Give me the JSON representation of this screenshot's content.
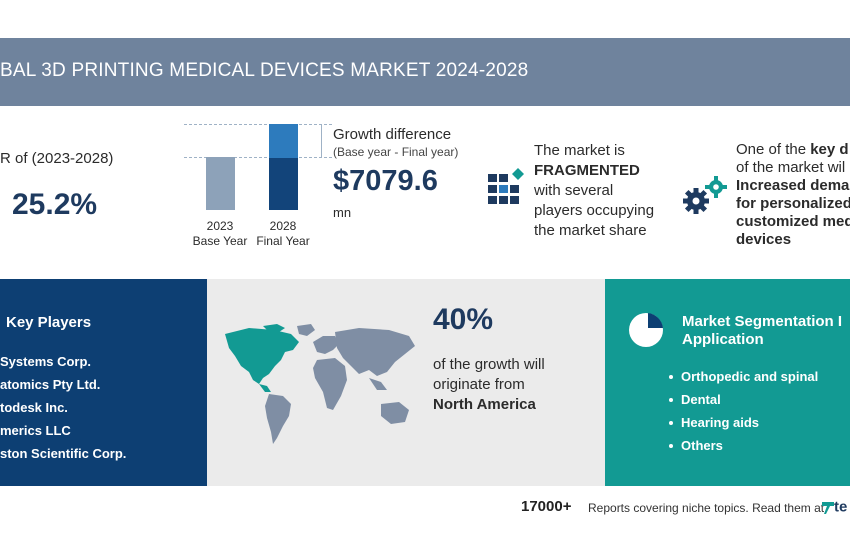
{
  "header": {
    "title": "BAL 3D PRINTING MEDICAL DEVICES MARKET 2024-2028"
  },
  "cagr": {
    "label": "R of (2023-2028)",
    "value": "25.2%"
  },
  "growth_chart": {
    "base_label_year": "2023",
    "base_label_name": "Base Year",
    "final_label_year": "2028",
    "final_label_name": "Final Year"
  },
  "growth": {
    "title": "Growth difference",
    "subtitle": "(Base year - Final year)",
    "value": "$7079.6",
    "unit": "mn"
  },
  "market": {
    "line1": "The market is",
    "line2": "FRAGMENTED",
    "line3": "with several",
    "line4": "players occupying",
    "line5": "the market share"
  },
  "driver": {
    "line1_pre": "One of the ",
    "line1_bold": "key d",
    "line2": "of the market wil",
    "line3": "Increased dema",
    "line4": "for personalized",
    "line5": "customized med",
    "line6": "devices"
  },
  "key_players": {
    "heading": "Key Players",
    "items": [
      "Systems Corp.",
      "atomics Pty Ltd.",
      "todesk Inc.",
      "merics LLC",
      "ston Scientific Corp."
    ]
  },
  "region": {
    "percent": "40%",
    "line1": "of the growth will",
    "line2": "originate from",
    "line3": "North America"
  },
  "segmentation": {
    "heading_line1": "Market Segmentation I",
    "heading_line2": "Application",
    "items": [
      "Orthopedic and spinal",
      "Dental",
      "Hearing aids",
      "Others"
    ]
  },
  "footer": {
    "count": "17000+",
    "text": "Reports covering niche topics. Read them at",
    "brand": "te"
  },
  "colors": {
    "header_bg": "#6f839d",
    "navy": "#0d3f73",
    "teal": "#129a93",
    "bar_light": "#8da2b9",
    "bar_blue": "#2d7bbd",
    "bar_dark": "#12447a",
    "map_highlight": "#129a93",
    "map_gray": "#7f8ea4"
  }
}
